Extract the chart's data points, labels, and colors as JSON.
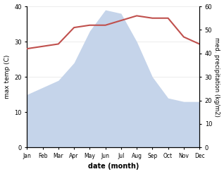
{
  "months": [
    "Jan",
    "Feb",
    "Mar",
    "Apr",
    "May",
    "Jun",
    "Jul",
    "Aug",
    "Sep",
    "Oct",
    "Nov",
    "Dec"
  ],
  "precipitation": [
    15,
    17,
    19,
    24,
    33,
    39,
    38,
    30,
    20,
    14,
    13,
    13
  ],
  "max_temp": [
    42,
    43,
    44,
    51,
    52,
    52,
    54,
    56,
    55,
    55,
    47,
    44
  ],
  "temp_color": "#c0504d",
  "precip_fill_color": "#c5d4ea",
  "precip_line_color": "#8096b8",
  "ylabel_left": "max temp (C)",
  "ylabel_right": "med. precipitation (kg/m2)",
  "xlabel": "date (month)",
  "ylim_left": [
    0,
    40
  ],
  "ylim_right": [
    0,
    60
  ],
  "yticks_left": [
    0,
    10,
    20,
    30,
    40
  ],
  "yticks_right": [
    0,
    10,
    20,
    30,
    40,
    50,
    60
  ],
  "background_color": "#ffffff"
}
